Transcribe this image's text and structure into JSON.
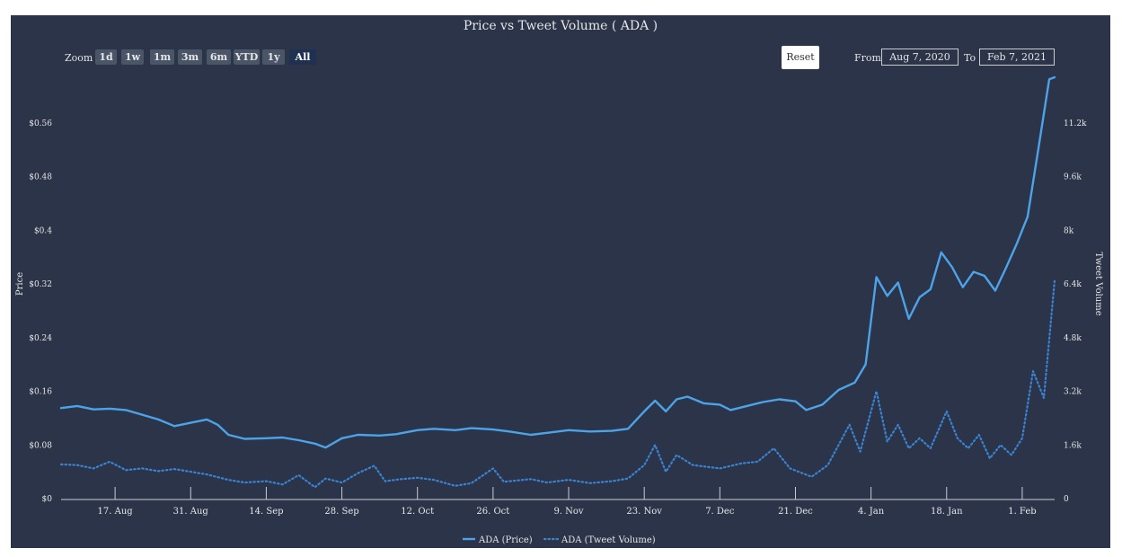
{
  "title": "Price vs Tweet Volume ( ADA )",
  "zoom": {
    "label": "Zoom",
    "buttons": [
      "1d",
      "1w",
      "1m",
      "3m",
      "6m",
      "YTD",
      "1y",
      "All"
    ],
    "active": "All"
  },
  "reset_label": "Reset",
  "range": {
    "from_label": "From",
    "from_value": "Aug 7, 2020",
    "to_label": "To",
    "to_value": "Feb 7, 2021"
  },
  "colors": {
    "background": "#2b3448",
    "price": "#4da3e8",
    "tweet": "#3b82cf",
    "text": "#e6e6e6"
  },
  "chart_data": {
    "type": "line",
    "title": "Price vs Tweet Volume ( ADA )",
    "x_ticks": [
      "17. Aug",
      "31. Aug",
      "14. Sep",
      "28. Sep",
      "12. Oct",
      "26. Oct",
      "9. Nov",
      "23. Nov",
      "7. Dec",
      "21. Dec",
      "4. Jan",
      "18. Jan",
      "1. Feb"
    ],
    "x_tick_dates": [
      "2020-08-17",
      "2020-08-31",
      "2020-09-14",
      "2020-09-28",
      "2020-10-12",
      "2020-10-26",
      "2020-11-09",
      "2020-11-23",
      "2020-12-07",
      "2020-12-21",
      "2021-01-04",
      "2021-01-18",
      "2021-02-01"
    ],
    "x_range": [
      "2020-08-07",
      "2021-02-07"
    ],
    "y_left": {
      "label": "Price",
      "ticks": [
        "$0",
        "$0.08",
        "$0.16",
        "$0.24",
        "$0.32",
        "$0.4",
        "$0.48",
        "$0.56"
      ],
      "range": [
        0,
        0.64
      ]
    },
    "y_right": {
      "label": "Tweet Volume",
      "ticks": [
        "0",
        "1.6k",
        "3.2k",
        "4.8k",
        "6.4k",
        "8k",
        "9.6k",
        "11.2k"
      ],
      "range": [
        0,
        12800
      ]
    },
    "legend": {
      "placement": "bottom-center",
      "entries": [
        "ADA (Price)",
        "ADA (Tweet Volume)"
      ]
    },
    "series": [
      {
        "name": "ADA (Price)",
        "axis": "left",
        "style": "solid",
        "points": [
          [
            "2020-08-07",
            0.135
          ],
          [
            "2020-08-10",
            0.138
          ],
          [
            "2020-08-13",
            0.133
          ],
          [
            "2020-08-16",
            0.134
          ],
          [
            "2020-08-19",
            0.132
          ],
          [
            "2020-08-22",
            0.125
          ],
          [
            "2020-08-25",
            0.118
          ],
          [
            "2020-08-28",
            0.108
          ],
          [
            "2020-08-31",
            0.113
          ],
          [
            "2020-09-03",
            0.118
          ],
          [
            "2020-09-05",
            0.11
          ],
          [
            "2020-09-07",
            0.095
          ],
          [
            "2020-09-10",
            0.089
          ],
          [
            "2020-09-14",
            0.09
          ],
          [
            "2020-09-17",
            0.091
          ],
          [
            "2020-09-20",
            0.087
          ],
          [
            "2020-09-23",
            0.082
          ],
          [
            "2020-09-25",
            0.076
          ],
          [
            "2020-09-28",
            0.09
          ],
          [
            "2020-10-01",
            0.095
          ],
          [
            "2020-10-05",
            0.094
          ],
          [
            "2020-10-08",
            0.096
          ],
          [
            "2020-10-12",
            0.102
          ],
          [
            "2020-10-15",
            0.104
          ],
          [
            "2020-10-19",
            0.102
          ],
          [
            "2020-10-22",
            0.105
          ],
          [
            "2020-10-26",
            0.103
          ],
          [
            "2020-10-29",
            0.1
          ],
          [
            "2020-11-02",
            0.095
          ],
          [
            "2020-11-05",
            0.098
          ],
          [
            "2020-11-09",
            0.102
          ],
          [
            "2020-11-13",
            0.1
          ],
          [
            "2020-11-17",
            0.101
          ],
          [
            "2020-11-20",
            0.104
          ],
          [
            "2020-11-23",
            0.13
          ],
          [
            "2020-11-25",
            0.146
          ],
          [
            "2020-11-27",
            0.13
          ],
          [
            "2020-11-29",
            0.148
          ],
          [
            "2020-12-01",
            0.152
          ],
          [
            "2020-12-04",
            0.142
          ],
          [
            "2020-12-07",
            0.14
          ],
          [
            "2020-12-09",
            0.132
          ],
          [
            "2020-12-12",
            0.138
          ],
          [
            "2020-12-15",
            0.144
          ],
          [
            "2020-12-18",
            0.148
          ],
          [
            "2020-12-21",
            0.145
          ],
          [
            "2020-12-23",
            0.132
          ],
          [
            "2020-12-26",
            0.14
          ],
          [
            "2020-12-29",
            0.162
          ],
          [
            "2021-01-01",
            0.173
          ],
          [
            "2021-01-03",
            0.2
          ],
          [
            "2021-01-05",
            0.33
          ],
          [
            "2021-01-07",
            0.302
          ],
          [
            "2021-01-09",
            0.322
          ],
          [
            "2021-01-11",
            0.268
          ],
          [
            "2021-01-13",
            0.3
          ],
          [
            "2021-01-15",
            0.312
          ],
          [
            "2021-01-17",
            0.367
          ],
          [
            "2021-01-19",
            0.345
          ],
          [
            "2021-01-21",
            0.315
          ],
          [
            "2021-01-23",
            0.338
          ],
          [
            "2021-01-25",
            0.332
          ],
          [
            "2021-01-27",
            0.31
          ],
          [
            "2021-01-29",
            0.344
          ],
          [
            "2021-01-31",
            0.38
          ],
          [
            "2021-02-02",
            0.42
          ],
          [
            "2021-02-04",
            0.522
          ],
          [
            "2021-02-06",
            0.625
          ],
          [
            "2021-02-07",
            0.628
          ]
        ]
      },
      {
        "name": "ADA (Tweet Volume)",
        "axis": "right",
        "style": "dotted",
        "points": [
          [
            "2020-08-07",
            1020
          ],
          [
            "2020-08-10",
            1000
          ],
          [
            "2020-08-13",
            900
          ],
          [
            "2020-08-16",
            1100
          ],
          [
            "2020-08-19",
            850
          ],
          [
            "2020-08-22",
            900
          ],
          [
            "2020-08-25",
            820
          ],
          [
            "2020-08-28",
            880
          ],
          [
            "2020-08-31",
            800
          ],
          [
            "2020-09-03",
            720
          ],
          [
            "2020-09-07",
            560
          ],
          [
            "2020-09-10",
            480
          ],
          [
            "2020-09-14",
            520
          ],
          [
            "2020-09-17",
            420
          ],
          [
            "2020-09-20",
            700
          ],
          [
            "2020-09-23",
            340
          ],
          [
            "2020-09-25",
            600
          ],
          [
            "2020-09-28",
            480
          ],
          [
            "2020-10-01",
            760
          ],
          [
            "2020-10-04",
            980
          ],
          [
            "2020-10-06",
            520
          ],
          [
            "2020-10-09",
            580
          ],
          [
            "2020-10-12",
            620
          ],
          [
            "2020-10-15",
            560
          ],
          [
            "2020-10-19",
            380
          ],
          [
            "2020-10-22",
            460
          ],
          [
            "2020-10-26",
            900
          ],
          [
            "2020-10-28",
            500
          ],
          [
            "2020-11-02",
            580
          ],
          [
            "2020-11-05",
            480
          ],
          [
            "2020-11-09",
            560
          ],
          [
            "2020-11-13",
            460
          ],
          [
            "2020-11-17",
            520
          ],
          [
            "2020-11-20",
            600
          ],
          [
            "2020-11-23",
            1000
          ],
          [
            "2020-11-25",
            1600
          ],
          [
            "2020-11-27",
            800
          ],
          [
            "2020-11-29",
            1300
          ],
          [
            "2020-12-02",
            1000
          ],
          [
            "2020-12-07",
            900
          ],
          [
            "2020-12-11",
            1050
          ],
          [
            "2020-12-14",
            1100
          ],
          [
            "2020-12-17",
            1500
          ],
          [
            "2020-12-20",
            900
          ],
          [
            "2020-12-24",
            650
          ],
          [
            "2020-12-27",
            1000
          ],
          [
            "2020-12-31",
            2200
          ],
          [
            "2021-01-02",
            1400
          ],
          [
            "2021-01-05",
            3200
          ],
          [
            "2021-01-07",
            1700
          ],
          [
            "2021-01-09",
            2200
          ],
          [
            "2021-01-11",
            1500
          ],
          [
            "2021-01-13",
            1800
          ],
          [
            "2021-01-15",
            1500
          ],
          [
            "2021-01-18",
            2600
          ],
          [
            "2021-01-20",
            1800
          ],
          [
            "2021-01-22",
            1500
          ],
          [
            "2021-01-24",
            1900
          ],
          [
            "2021-01-26",
            1200
          ],
          [
            "2021-01-28",
            1600
          ],
          [
            "2021-01-30",
            1300
          ],
          [
            "2021-02-01",
            1800
          ],
          [
            "2021-02-03",
            3800
          ],
          [
            "2021-02-05",
            3000
          ],
          [
            "2021-02-07",
            6500
          ]
        ]
      }
    ]
  }
}
